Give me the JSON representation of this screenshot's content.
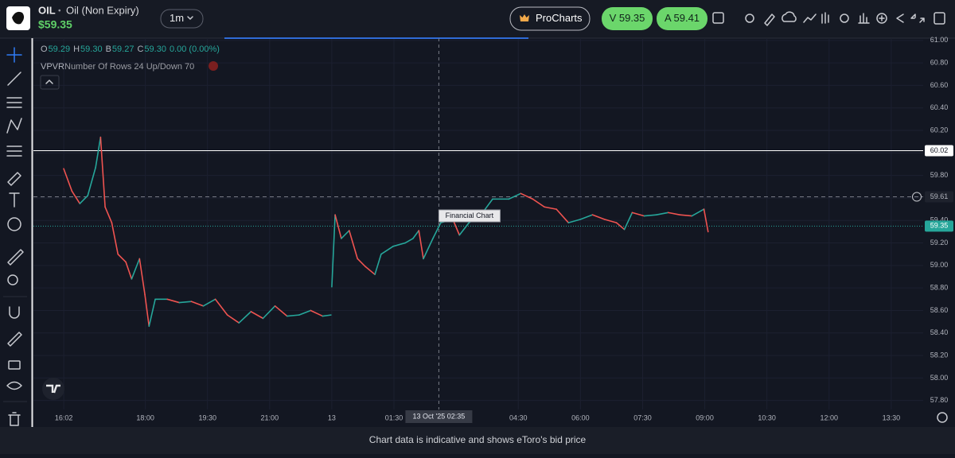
{
  "header": {
    "symbol": "OIL",
    "separator": "•",
    "name": "Oil (Non Expiry)",
    "price": "$59.35",
    "interval": "1m",
    "procharts": "ProCharts",
    "sell": "V 59.35",
    "buy": "A 59.41"
  },
  "legend": {
    "ohlc": [
      {
        "label": "O",
        "value": "59.29"
      },
      {
        "label": "H",
        "value": "59.30"
      },
      {
        "label": "B",
        "value": "59.27"
      },
      {
        "label": "C",
        "value": "59.30"
      }
    ],
    "change": "0.00 (0.00%)",
    "indicator": "VPVR",
    "indicator_settings": "Number Of Rows 24 Up/Down 70"
  },
  "chart_data": {
    "type": "line",
    "x": [
      16.03,
      16.23,
      16.42,
      16.61,
      16.8,
      16.92,
      17.03,
      17.19,
      17.34,
      17.53,
      17.67,
      17.86,
      17.99,
      18.09,
      18.24,
      18.53,
      18.82,
      19.11,
      19.4,
      19.69,
      19.98,
      20.26,
      20.55,
      20.84,
      21.13,
      21.42,
      21.71,
      21.99,
      22.28,
      22.48,
      null,
      24.0,
      24.08,
      24.23,
      24.42,
      24.62,
      24.81,
      25.04,
      25.19,
      25.48,
      25.77,
      25.96,
      26.1,
      26.21,
      26.44,
      26.63,
      26.92,
      27.08,
      27.31,
      27.6,
      27.88,
      28.27,
      28.56,
      28.85,
      29.13,
      29.42,
      29.71,
      30.0,
      30.29,
      30.58,
      30.87,
      31.06,
      31.25,
      31.54,
      31.83,
      32.12,
      32.4,
      32.69,
      32.98,
      33.08
    ],
    "series": [
      {
        "name": "OIL",
        "color": "#26a69a",
        "down_color": "#ef5350",
        "axis": "y",
        "values": [
          59.86,
          59.66,
          59.55,
          59.62,
          59.87,
          60.14,
          59.52,
          59.38,
          59.1,
          59.03,
          58.88,
          59.06,
          58.74,
          58.46,
          58.7,
          58.7,
          58.67,
          58.68,
          58.64,
          58.7,
          58.56,
          58.49,
          58.59,
          58.53,
          58.64,
          58.55,
          58.56,
          58.6,
          58.55,
          58.56,
          null,
          58.81,
          59.45,
          59.24,
          59.31,
          59.06,
          58.99,
          58.92,
          59.1,
          59.17,
          59.2,
          59.24,
          59.31,
          59.06,
          59.24,
          59.38,
          59.41,
          59.27,
          59.38,
          59.45,
          59.59,
          59.59,
          59.64,
          59.59,
          59.52,
          59.5,
          59.38,
          59.41,
          59.45,
          59.41,
          59.38,
          59.32,
          59.47,
          59.44,
          59.45,
          59.47,
          59.45,
          59.44,
          59.5,
          59.3
        ]
      }
    ],
    "xlim": [
      15.3,
      38.27
    ],
    "xbreak": [
      22.5,
      24
    ],
    "xticks": [
      {
        "value": 16.033,
        "label": "16:02"
      },
      {
        "value": 18,
        "label": "18:00"
      },
      {
        "value": 19.5,
        "label": "19:30"
      },
      {
        "value": 21,
        "label": "21:00"
      },
      {
        "value": 24,
        "label": "13"
      },
      {
        "value": 25.5,
        "label": "01:30"
      },
      {
        "value": 28.5,
        "label": "04:30"
      },
      {
        "value": 30,
        "label": "06:00"
      },
      {
        "value": 31.5,
        "label": "07:30"
      },
      {
        "value": 33,
        "label": "09:00"
      },
      {
        "value": 34.5,
        "label": "10:30"
      },
      {
        "value": 36,
        "label": "12:00"
      },
      {
        "value": 37.5,
        "label": "13:30"
      }
    ],
    "ylim": [
      57.72,
      61.02
    ],
    "yticks": [
      {
        "value": 57.8,
        "label": "57.80"
      },
      {
        "value": 58,
        "label": "58.00"
      },
      {
        "value": 58.2,
        "label": "58.20"
      },
      {
        "value": 58.4,
        "label": "58.40"
      },
      {
        "value": 58.6,
        "label": "58.60"
      },
      {
        "value": 58.8,
        "label": "58.80"
      },
      {
        "value": 59,
        "label": "59.00"
      },
      {
        "value": 59.2,
        "label": "59.20"
      },
      {
        "value": 59.4,
        "label": "59.40"
      },
      {
        "value": 59.6,
        "label": "59.60"
      },
      {
        "value": 59.8,
        "label": "59.80"
      },
      {
        "value": 60,
        "label": "60.00"
      },
      {
        "value": 60.2,
        "label": "60.20"
      },
      {
        "value": 60.4,
        "label": "60.40"
      },
      {
        "value": 60.6,
        "label": "60.60"
      },
      {
        "value": 60.8,
        "label": "60.80"
      },
      {
        "value": 61,
        "label": "61.00"
      }
    ],
    "grid": true,
    "hlines": [
      {
        "value": 60.02,
        "label": "60.02",
        "style": "solid",
        "color": "#ffffff"
      },
      {
        "value": 59.61,
        "label": "59.61",
        "style": "dashed",
        "color": "#787b86"
      },
      {
        "value": 59.35,
        "label": "59.35",
        "style": "dotted",
        "color": "#26a69a"
      }
    ],
    "crosshair": {
      "x": 26.583,
      "label": "13 Oct '25  02:35",
      "tooltip": "Financial Chart"
    }
  },
  "footer": "Chart data is indicative and shows eToro's bid price"
}
